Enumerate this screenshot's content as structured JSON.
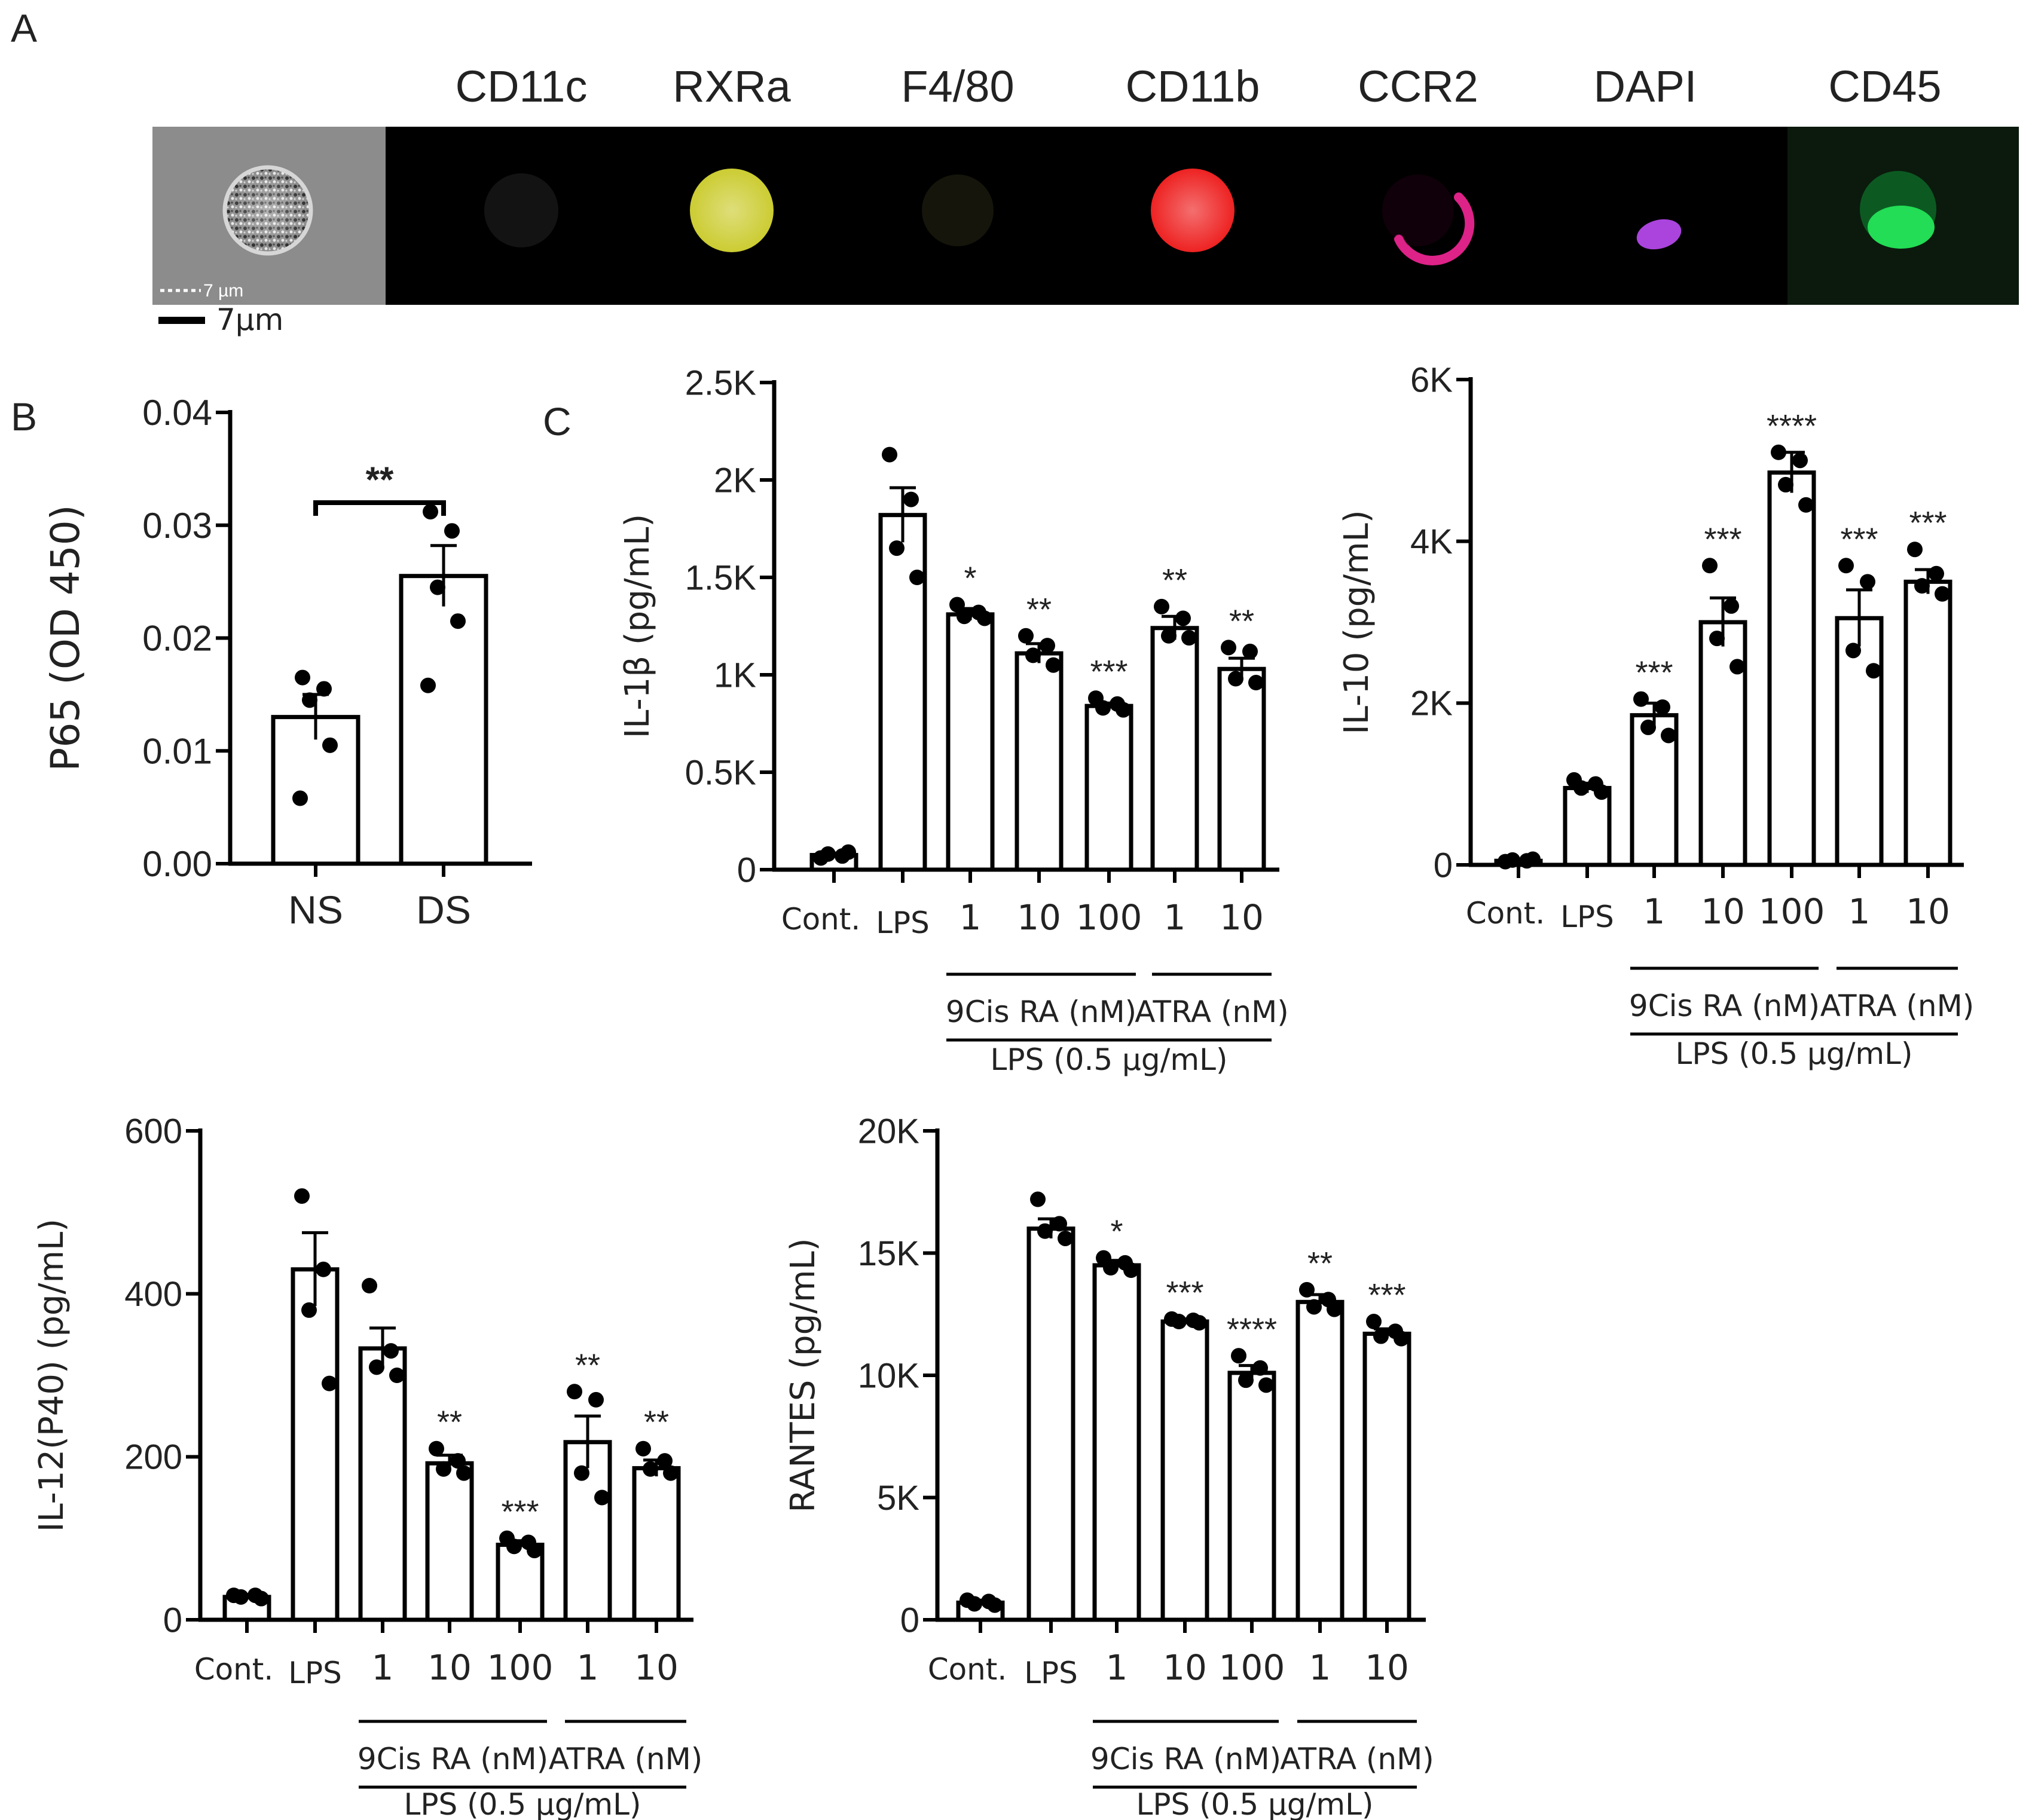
{
  "panel_labels": {
    "a": "A",
    "b": "B",
    "c": "C"
  },
  "panel_a": {
    "channels": [
      "CD11c",
      "RXRa",
      "F4/80",
      "CD11b",
      "CCR2",
      "DAPI",
      "CD45"
    ],
    "channel_colors": [
      "#4a4a4a",
      "#cccc33",
      "#3d3d1f",
      "#ee2222",
      "#dd2288",
      "#aa44dd",
      "#22dd55"
    ],
    "inner_scale_label": "7 µm",
    "scale_label": "7µm"
  },
  "chart_data": [
    {
      "id": "p65",
      "type": "bar",
      "ylabel": "P65 (OD 450)",
      "categories": [
        "NS",
        "DS"
      ],
      "values": [
        0.013,
        0.0255
      ],
      "errors": [
        0.002,
        0.0027
      ],
      "points": [
        [
          0.0165,
          0.0155,
          0.0145,
          0.0105,
          0.0058
        ],
        [
          0.0312,
          0.0295,
          0.0245,
          0.0215,
          0.0158
        ]
      ],
      "ylim": [
        0,
        0.04
      ],
      "ticks": [
        0,
        0.01,
        0.02,
        0.03,
        0.04
      ],
      "tick_labels": [
        "0.00",
        "0.01",
        "0.02",
        "0.03",
        "0.04"
      ],
      "significance": {
        "from": 0,
        "to": 1,
        "label": "**"
      }
    },
    {
      "id": "il1b",
      "type": "bar",
      "ylabel": "IL-1β (pg/mL)",
      "categories": [
        "Cont.",
        "LPS",
        "1",
        "10",
        "100",
        "1",
        "10"
      ],
      "values": [
        75,
        1820,
        1310,
        1110,
        840,
        1240,
        1030
      ],
      "errors": [
        10,
        140,
        30,
        50,
        15,
        60,
        55
      ],
      "points": [
        [
          60,
          70,
          80,
          90
        ],
        [
          2130,
          1900,
          1650,
          1500
        ],
        [
          1360,
          1320,
          1300,
          1290
        ],
        [
          1200,
          1150,
          1100,
          1050
        ],
        [
          880,
          850,
          830,
          820
        ],
        [
          1350,
          1290,
          1200,
          1190
        ],
        [
          1140,
          1120,
          980,
          960
        ]
      ],
      "stars": [
        "",
        "",
        "*",
        "**",
        "***",
        "**",
        "**"
      ],
      "ylim": [
        0,
        2500
      ],
      "ticks": [
        0,
        500,
        1000,
        1500,
        2000,
        2500
      ],
      "tick_labels": [
        "0",
        "0.5K",
        "1K",
        "1.5K",
        "2K",
        "2.5K"
      ],
      "group_labels": [
        "9Cis RA (nM)",
        "ATRA (nM)"
      ],
      "lps_label": "LPS (0.5 µg/mL)"
    },
    {
      "id": "il10",
      "type": "bar",
      "ylabel": "IL-10 (pg/mL)",
      "categories": [
        "Cont.",
        "LPS",
        "1",
        "10",
        "100",
        "1",
        "10"
      ],
      "values": [
        50,
        950,
        1850,
        3000,
        4850,
        3050,
        3500
      ],
      "errors": [
        10,
        60,
        150,
        300,
        250,
        350,
        150
      ],
      "points": [
        [
          40,
          50,
          60,
          70
        ],
        [
          1050,
          1000,
          950,
          900
        ],
        [
          2050,
          1950,
          1700,
          1600
        ],
        [
          3700,
          3200,
          2800,
          2450
        ],
        [
          5100,
          5000,
          4700,
          4450
        ],
        [
          3700,
          3500,
          2650,
          2400
        ],
        [
          3900,
          3600,
          3450,
          3350
        ]
      ],
      "stars": [
        "",
        "",
        "***",
        "***",
        "****",
        "***",
        "***"
      ],
      "ylim": [
        0,
        6000
      ],
      "ticks": [
        0,
        2000,
        4000,
        6000
      ],
      "tick_labels": [
        "0",
        "2K",
        "4K",
        "6K"
      ],
      "group_labels": [
        "9Cis RA (nM)",
        "ATRA (nM)"
      ],
      "lps_label": "LPS (0.5 µg/mL)"
    },
    {
      "id": "il12",
      "type": "bar",
      "ylabel": "IL-12(P40) (pg/mL)",
      "categories": [
        "Cont.",
        "LPS",
        "1",
        "10",
        "100",
        "1",
        "10"
      ],
      "values": [
        28,
        430,
        333,
        192,
        92,
        218,
        186
      ],
      "errors": [
        3,
        45,
        25,
        10,
        5,
        32,
        10
      ],
      "points": [
        [
          30,
          30,
          28,
          26
        ],
        [
          520,
          430,
          380,
          290
        ],
        [
          410,
          330,
          310,
          300
        ],
        [
          210,
          195,
          185,
          180
        ],
        [
          100,
          95,
          90,
          85
        ],
        [
          280,
          270,
          180,
          150
        ],
        [
          210,
          195,
          185,
          180
        ]
      ],
      "stars": [
        "",
        "",
        "",
        "**",
        "***",
        "**",
        "**"
      ],
      "ylim": [
        0,
        600
      ],
      "ticks": [
        0,
        200,
        400,
        600
      ],
      "tick_labels": [
        "0",
        "200",
        "400",
        "600"
      ],
      "group_labels": [
        "9Cis RA (nM)",
        "ATRA (nM)"
      ],
      "lps_label": "LPS (0.5 µg/mL)"
    },
    {
      "id": "rantes",
      "type": "bar",
      "ylabel": "RANTES (pg/mL)",
      "categories": [
        "Cont.",
        "LPS",
        "1",
        "10",
        "100",
        "1",
        "10"
      ],
      "values": [
        700,
        16000,
        14500,
        12200,
        10100,
        13000,
        11700
      ],
      "errors": [
        100,
        400,
        200,
        100,
        300,
        300,
        200
      ],
      "points": [
        [
          800,
          750,
          650,
          600
        ],
        [
          17200,
          16200,
          15900,
          15600
        ],
        [
          14800,
          14600,
          14400,
          14300
        ],
        [
          12300,
          12250,
          12200,
          12150
        ],
        [
          10800,
          10300,
          9800,
          9600
        ],
        [
          13500,
          13100,
          12800,
          12700
        ],
        [
          12200,
          11800,
          11600,
          11500
        ]
      ],
      "stars": [
        "",
        "",
        "*",
        "***",
        "****",
        "**",
        "***"
      ],
      "ylim": [
        0,
        20000
      ],
      "ticks": [
        0,
        5000,
        10000,
        15000,
        20000
      ],
      "tick_labels": [
        "0",
        "5K",
        "10K",
        "15K",
        "20K"
      ],
      "group_labels": [
        "9Cis RA (nM)",
        "ATRA (nM)"
      ],
      "lps_label": "LPS (0.5 µg/mL)"
    }
  ]
}
